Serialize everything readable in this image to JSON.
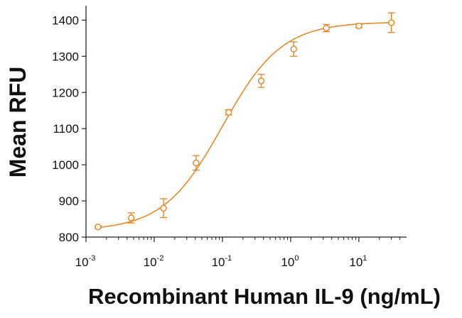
{
  "chart_data": {
    "type": "scatter",
    "title": "",
    "xlabel": "Recombinant Human IL-9 (ng/mL)",
    "ylabel": "Mean RFU",
    "x_scale": "log",
    "xlim": [
      0.001,
      50
    ],
    "ylim": [
      800,
      1440
    ],
    "y_ticks": [
      800,
      900,
      1000,
      1100,
      1200,
      1300,
      1400
    ],
    "x_ticks": [
      {
        "value": 0.001,
        "base": "10",
        "exp": "-3"
      },
      {
        "value": 0.01,
        "base": "10",
        "exp": "-2"
      },
      {
        "value": 0.1,
        "base": "10",
        "exp": "-1"
      },
      {
        "value": 1,
        "base": "10",
        "exp": "0"
      },
      {
        "value": 10,
        "base": "10",
        "exp": "1"
      }
    ],
    "grid": false,
    "legend": "none",
    "color": "#E8892A",
    "series": [
      {
        "marker": "open-circle",
        "points": [
          {
            "x": 0.0015,
            "y": 828,
            "err": 3
          },
          {
            "x": 0.0046,
            "y": 853,
            "err": 14
          },
          {
            "x": 0.0137,
            "y": 880,
            "err": 26
          },
          {
            "x": 0.041,
            "y": 1005,
            "err": 20
          },
          {
            "x": 0.123,
            "y": 1145,
            "err": 7
          },
          {
            "x": 0.37,
            "y": 1232,
            "err": 18
          },
          {
            "x": 1.11,
            "y": 1320,
            "err": 20
          },
          {
            "x": 3.33,
            "y": 1378,
            "err": 10
          },
          {
            "x": 10,
            "y": 1384,
            "err": 5
          },
          {
            "x": 30,
            "y": 1393,
            "err": 27
          }
        ],
        "fit": {
          "model": "4PL",
          "bottom": 818,
          "top": 1395,
          "ec50": 0.1,
          "hill": 1.0
        }
      }
    ]
  }
}
